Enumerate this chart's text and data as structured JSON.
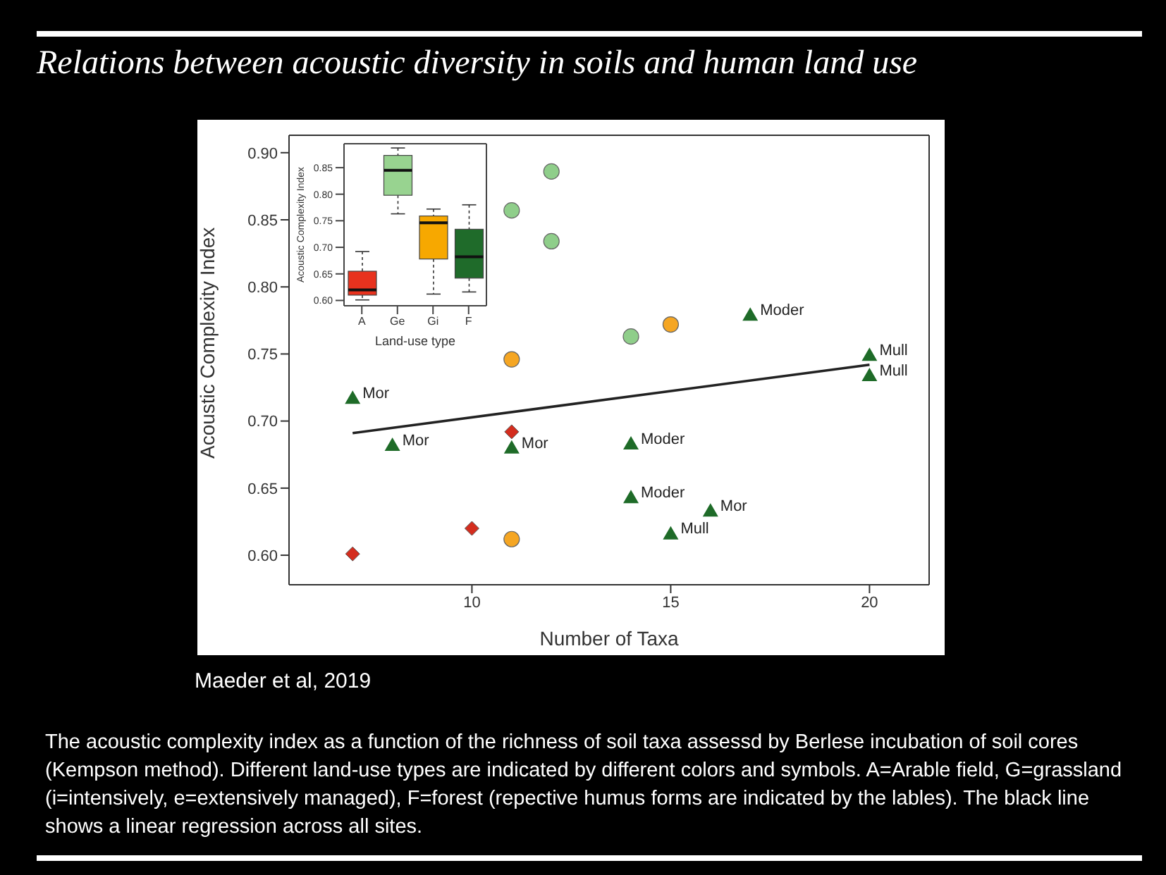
{
  "chart_data": [
    {
      "type": "scatter",
      "title": "Relations between acoustic diversity in soils and human land use",
      "xlabel": "Number of Taxa",
      "ylabel": "Acoustic Complexity Index",
      "xlim": [
        5.4,
        21.5
      ],
      "ylim": [
        0.578,
        0.913
      ],
      "xticks": [
        10,
        15,
        20
      ],
      "yticks": [
        {
          "value": 0.6,
          "label": "0.60"
        },
        0.65,
        {
          "value": 0.7,
          "label": "0.70"
        },
        0.75,
        {
          "value": 0.8,
          "label": "0.80"
        },
        0.85,
        {
          "value": 0.9,
          "label": "0.90"
        }
      ],
      "grid": false,
      "legend": false,
      "series": [
        {
          "color": "#d42d1e",
          "marker": "diamond",
          "x": [
            7,
            10,
            11
          ],
          "values": [
            0.601,
            0.62,
            0.692
          ]
        },
        {
          "color": "#f5a623",
          "marker": "circle",
          "x": [
            11,
            11,
            15
          ],
          "values": [
            0.746,
            0.612,
            0.772
          ]
        },
        {
          "color": "#8fce8a",
          "marker": "circle",
          "x": [
            11,
            12,
            12,
            14
          ],
          "values": [
            0.857,
            0.886,
            0.834,
            0.763
          ]
        },
        {
          "color": "#1e6b28",
          "marker": "triangle",
          "x": [
            7,
            8,
            11,
            14,
            14,
            15,
            16,
            17,
            20,
            20
          ],
          "values": [
            0.717,
            0.682,
            0.68,
            0.683,
            0.643,
            0.616,
            0.633,
            0.779,
            0.749,
            0.734
          ]
        },
        {
          "type": "line",
          "color": "#222222",
          "marker": "none",
          "x": [
            7,
            20
          ],
          "values": [
            0.691,
            0.742
          ]
        }
      ],
      "annotations": [
        {
          "text": "Mor",
          "x": 7,
          "y": 0.717
        },
        {
          "text": "Mor",
          "x": 8,
          "y": 0.682
        },
        {
          "text": "Mor",
          "x": 11,
          "y": 0.68
        },
        {
          "text": "Moder",
          "x": 14,
          "y": 0.683
        },
        {
          "text": "Moder",
          "x": 14,
          "y": 0.643
        },
        {
          "text": "Mull",
          "x": 15,
          "y": 0.616
        },
        {
          "text": "Mor",
          "x": 16,
          "y": 0.633
        },
        {
          "text": "Moder",
          "x": 17,
          "y": 0.779
        },
        {
          "text": "Mull",
          "x": 20,
          "y": 0.749
        },
        {
          "text": "Mull",
          "x": 20,
          "y": 0.734
        },
        "Maeder et al, 2019",
        "The acoustic complexity index as a function of the richness of soil taxa assessd by Berlese incubation of soil cores (Kempson method). Different land-use types are indicated by different colors and symbols. A=Arable field, G=grassland (i=intensively, e=extensively managed), F=forest (repective humus forms are indicated by the lables). The black line shows a linear regression across all sites."
      ]
    },
    {
      "type": "box",
      "xlabel": "Land-use type",
      "ylabel": "Acoustic Complexity Index",
      "categories": [
        "A",
        "Ge",
        "Gi",
        "F"
      ],
      "colors": [
        "#e8321e",
        "#98d390",
        "#f7a800",
        "#1f6b2a"
      ],
      "ylim": [
        0.59,
        0.895
      ],
      "yticks": [
        {
          "value": 0.6,
          "label": "0.60"
        },
        0.65,
        {
          "value": 0.7,
          "label": "0.70"
        },
        0.75,
        {
          "value": 0.8,
          "label": "0.80"
        },
        0.85
      ],
      "boxes": [
        {
          "low": 0.601,
          "q1": 0.61,
          "median": 0.62,
          "q3": 0.655,
          "high": 0.692
        },
        {
          "low": 0.763,
          "q1": 0.798,
          "median": 0.845,
          "q3": 0.873,
          "high": 0.887
        },
        {
          "low": 0.612,
          "q1": 0.678,
          "median": 0.746,
          "q3": 0.759,
          "high": 0.772
        },
        {
          "low": 0.616,
          "q1": 0.642,
          "median": 0.682,
          "q3": 0.734,
          "high": 0.78
        }
      ]
    }
  ]
}
